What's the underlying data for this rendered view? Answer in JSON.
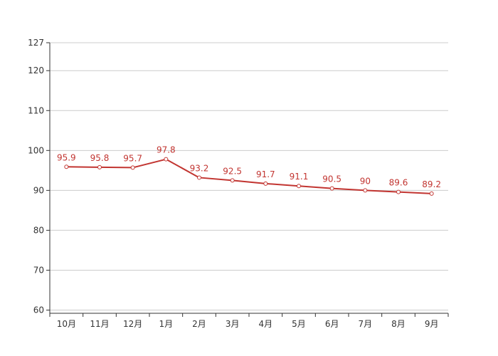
{
  "chart_data": {
    "type": "line",
    "categories": [
      "10月",
      "11月",
      "12月",
      "1月",
      "2月",
      "3月",
      "4月",
      "5月",
      "6月",
      "7月",
      "8月",
      "9月"
    ],
    "series": [
      {
        "values": [
          95.9,
          95.8,
          95.7,
          97.8,
          93.2,
          92.5,
          91.7,
          91.1,
          90.5,
          90,
          89.6,
          89.2
        ],
        "color": "#c23531"
      }
    ],
    "y_ticks": [
      60,
      70,
      80,
      90,
      100,
      110,
      120,
      127
    ],
    "ylim": [
      60,
      127
    ],
    "grid": true,
    "data_labels": true,
    "colors": {
      "grid": "#cccccc",
      "axis": "#333333",
      "series": "#c23531"
    }
  }
}
